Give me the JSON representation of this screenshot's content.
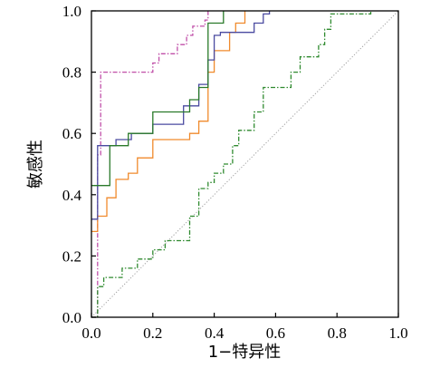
{
  "chart_data": {
    "type": "line",
    "title": "",
    "xlabel": "1−特异性",
    "ylabel": "敏感性",
    "xlim": [
      0,
      1
    ],
    "ylim": [
      0,
      1
    ],
    "xticks": [
      "0.0",
      "0.2",
      "0.4",
      "0.6",
      "0.8",
      "1.0"
    ],
    "yticks": [
      "0.0",
      "0.2",
      "0.4",
      "0.6",
      "0.8",
      "1.0"
    ],
    "grid": false,
    "legend": "none",
    "series": [
      {
        "color": "#a0a0a0",
        "style": "dotted",
        "points": [
          [
            0,
            0
          ],
          [
            1,
            1
          ]
        ]
      },
      {
        "color": "#c04fa8",
        "style": "dash-dot",
        "points": [
          [
            0,
            0
          ],
          [
            0.02,
            0
          ],
          [
            0.02,
            0.53
          ],
          [
            0.03,
            0.53
          ],
          [
            0.03,
            0.8
          ],
          [
            0.2,
            0.8
          ],
          [
            0.2,
            0.83
          ],
          [
            0.22,
            0.83
          ],
          [
            0.22,
            0.86
          ],
          [
            0.28,
            0.86
          ],
          [
            0.28,
            0.89
          ],
          [
            0.31,
            0.89
          ],
          [
            0.31,
            0.92
          ],
          [
            0.33,
            0.92
          ],
          [
            0.33,
            0.95
          ],
          [
            0.37,
            0.95
          ],
          [
            0.37,
            0.97
          ],
          [
            0.38,
            0.97
          ],
          [
            0.38,
            1.0
          ]
        ]
      },
      {
        "color": "#f08a2c",
        "style": "solid",
        "points": [
          [
            0,
            0.28
          ],
          [
            0.02,
            0.28
          ],
          [
            0.02,
            0.33
          ],
          [
            0.05,
            0.33
          ],
          [
            0.05,
            0.39
          ],
          [
            0.08,
            0.39
          ],
          [
            0.08,
            0.45
          ],
          [
            0.12,
            0.45
          ],
          [
            0.12,
            0.47
          ],
          [
            0.15,
            0.47
          ],
          [
            0.15,
            0.52
          ],
          [
            0.2,
            0.52
          ],
          [
            0.2,
            0.58
          ],
          [
            0.32,
            0.58
          ],
          [
            0.32,
            0.6
          ],
          [
            0.35,
            0.6
          ],
          [
            0.35,
            0.64
          ],
          [
            0.38,
            0.64
          ],
          [
            0.38,
            0.8
          ],
          [
            0.4,
            0.8
          ],
          [
            0.4,
            0.87
          ],
          [
            0.45,
            0.87
          ],
          [
            0.45,
            0.93
          ],
          [
            0.47,
            0.93
          ],
          [
            0.47,
            0.96
          ],
          [
            0.5,
            0.96
          ],
          [
            0.5,
            1.0
          ]
        ]
      },
      {
        "color": "#4a4aa0",
        "style": "solid",
        "points": [
          [
            0,
            0.32
          ],
          [
            0.02,
            0.32
          ],
          [
            0.02,
            0.56
          ],
          [
            0.08,
            0.56
          ],
          [
            0.08,
            0.58
          ],
          [
            0.13,
            0.58
          ],
          [
            0.13,
            0.6
          ],
          [
            0.2,
            0.6
          ],
          [
            0.2,
            0.63
          ],
          [
            0.3,
            0.63
          ],
          [
            0.3,
            0.69
          ],
          [
            0.35,
            0.69
          ],
          [
            0.35,
            0.76
          ],
          [
            0.38,
            0.76
          ],
          [
            0.38,
            0.84
          ],
          [
            0.4,
            0.84
          ],
          [
            0.4,
            0.92
          ],
          [
            0.42,
            0.92
          ],
          [
            0.42,
            0.93
          ],
          [
            0.53,
            0.93
          ],
          [
            0.53,
            0.96
          ],
          [
            0.56,
            0.96
          ],
          [
            0.56,
            0.99
          ],
          [
            0.58,
            0.99
          ],
          [
            0.58,
            1.0
          ]
        ]
      },
      {
        "color": "#2a7a2a",
        "style": "solid",
        "points": [
          [
            0,
            0.43
          ],
          [
            0.06,
            0.43
          ],
          [
            0.06,
            0.56
          ],
          [
            0.12,
            0.56
          ],
          [
            0.12,
            0.6
          ],
          [
            0.2,
            0.6
          ],
          [
            0.2,
            0.67
          ],
          [
            0.32,
            0.67
          ],
          [
            0.32,
            0.71
          ],
          [
            0.35,
            0.71
          ],
          [
            0.35,
            0.75
          ],
          [
            0.38,
            0.75
          ],
          [
            0.38,
            0.96
          ],
          [
            0.43,
            0.96
          ],
          [
            0.43,
            1.0
          ]
        ]
      },
      {
        "color": "#2f8a2f",
        "style": "dash-dot",
        "points": [
          [
            0,
            0
          ],
          [
            0.02,
            0
          ],
          [
            0.02,
            0.1
          ],
          [
            0.04,
            0.1
          ],
          [
            0.04,
            0.13
          ],
          [
            0.1,
            0.13
          ],
          [
            0.1,
            0.16
          ],
          [
            0.15,
            0.16
          ],
          [
            0.15,
            0.19
          ],
          [
            0.2,
            0.19
          ],
          [
            0.2,
            0.22
          ],
          [
            0.24,
            0.22
          ],
          [
            0.24,
            0.25
          ],
          [
            0.32,
            0.25
          ],
          [
            0.32,
            0.33
          ],
          [
            0.35,
            0.33
          ],
          [
            0.35,
            0.42
          ],
          [
            0.38,
            0.42
          ],
          [
            0.38,
            0.44
          ],
          [
            0.4,
            0.44
          ],
          [
            0.4,
            0.47
          ],
          [
            0.43,
            0.47
          ],
          [
            0.43,
            0.5
          ],
          [
            0.46,
            0.5
          ],
          [
            0.46,
            0.56
          ],
          [
            0.48,
            0.56
          ],
          [
            0.48,
            0.61
          ],
          [
            0.53,
            0.61
          ],
          [
            0.53,
            0.67
          ],
          [
            0.56,
            0.67
          ],
          [
            0.56,
            0.75
          ],
          [
            0.65,
            0.75
          ],
          [
            0.65,
            0.8
          ],
          [
            0.68,
            0.8
          ],
          [
            0.68,
            0.85
          ],
          [
            0.74,
            0.85
          ],
          [
            0.74,
            0.89
          ],
          [
            0.76,
            0.89
          ],
          [
            0.76,
            0.94
          ],
          [
            0.78,
            0.94
          ],
          [
            0.78,
            0.99
          ],
          [
            0.91,
            0.99
          ],
          [
            0.91,
            1.0
          ]
        ]
      }
    ]
  }
}
